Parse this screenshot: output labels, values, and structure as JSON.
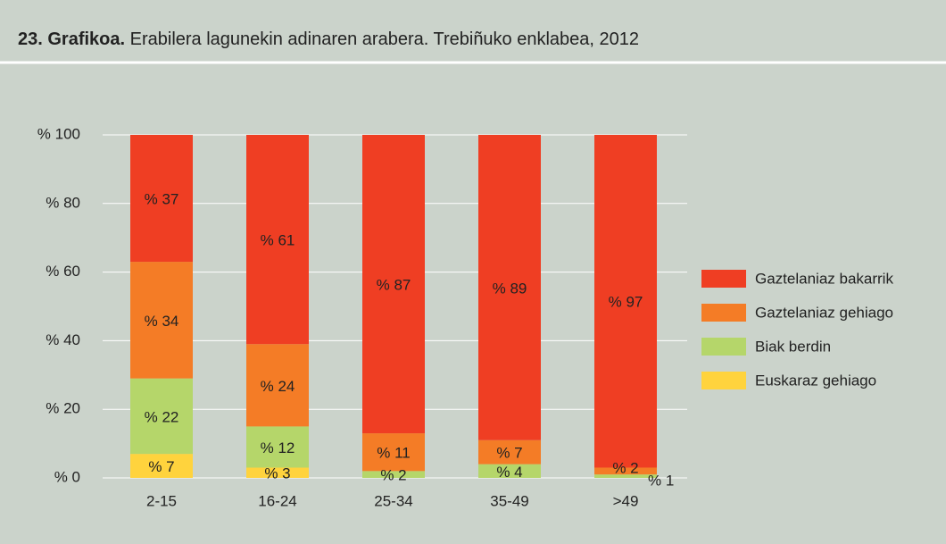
{
  "chart_data": {
    "type": "stacked_bar",
    "title_number": "23. Grafikoa.",
    "title": "Erabilera lagunekin adinaren arabera. Trebiñuko enklabea, 2012",
    "categories": [
      "2-15",
      "16-24",
      "25-34",
      "35-49",
      ">49"
    ],
    "series": [
      {
        "name": "Euskaraz gehiago",
        "color": "#ffd33d",
        "values": [
          7,
          3,
          0,
          0,
          0
        ],
        "value_labels": [
          "% 7",
          "% 3",
          null,
          null,
          null
        ]
      },
      {
        "name": "Biak berdin",
        "color": "#b5d66a",
        "values": [
          22,
          12,
          2,
          4,
          1
        ],
        "value_labels": [
          "% 22",
          "% 12",
          "% 2",
          "% 4",
          "% 1"
        ]
      },
      {
        "name": "Gaztelaniaz gehiago",
        "color": "#f47c26",
        "values": [
          34,
          24,
          11,
          7,
          2
        ],
        "value_labels": [
          "% 34",
          "% 24",
          "% 11",
          "% 7",
          "% 2"
        ]
      },
      {
        "name": "Gaztelaniaz bakarrik",
        "color": "#ef3e23",
        "values": [
          37,
          61,
          87,
          89,
          97
        ],
        "value_labels": [
          "% 37",
          "% 61",
          "% 87",
          "% 89",
          "% 97"
        ]
      }
    ],
    "ylim": [
      0,
      100
    ],
    "yticks": [
      {
        "value": 0,
        "label": "% 0"
      },
      {
        "value": 20,
        "label": "% 20"
      },
      {
        "value": 40,
        "label": "% 40"
      },
      {
        "value": 60,
        "label": "% 60"
      },
      {
        "value": 80,
        "label": "% 80"
      },
      {
        "value": 100,
        "label": "% 100"
      }
    ],
    "grid": true,
    "legend": "right"
  }
}
